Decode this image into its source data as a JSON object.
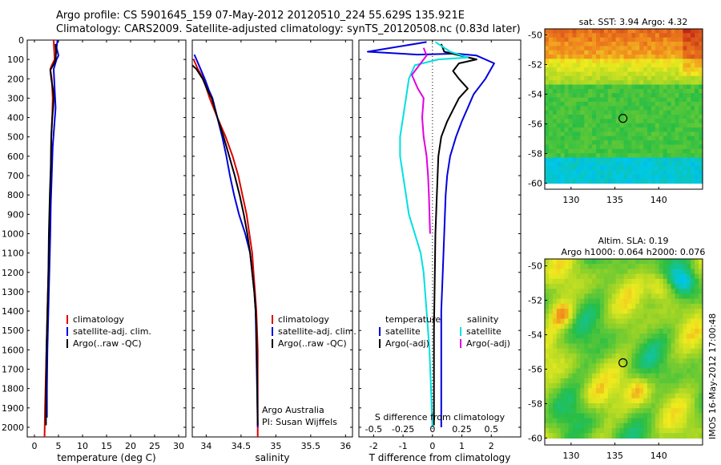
{
  "header": {
    "line1": "Argo profile: CS 5901645_159 07-May-2012 20120510_224 55.629S 135.921E",
    "line2": "Climatology: CARS2009. Satellite-adjusted climatology: synTS_20120508.nc (0.83d later)"
  },
  "side_stamp": "IMOS 16-May-2012 17:00:48",
  "colors": {
    "climatology": "#dd0000",
    "satellite": "#0000dd",
    "argo": "#000000",
    "satellite_salinity": "#00e0e0",
    "argo_salinity": "#e000e0"
  },
  "chart_data": [
    {
      "type": "line",
      "panel": "temperature",
      "xlabel": "temperature (deg C)",
      "ylabel": "",
      "xlim": [
        -1.5,
        31.5
      ],
      "ylim": [
        2050,
        0
      ],
      "y_inverted": true,
      "x_ticks": [
        0,
        5,
        10,
        15,
        20,
        25,
        30
      ],
      "y_ticks": [
        0,
        100,
        200,
        300,
        400,
        500,
        600,
        700,
        800,
        900,
        1000,
        1100,
        1200,
        1300,
        1400,
        1500,
        1600,
        1700,
        1800,
        1900,
        2000
      ],
      "legend": {
        "placement": "lower-middle",
        "entries": [
          "climatology",
          "satellite-adj. clim.",
          "Argo(..raw -QC)"
        ]
      },
      "series": [
        {
          "name": "climatology",
          "color": "#dd0000",
          "points": [
            [
              4.0,
              0
            ],
            [
              4.1,
              50
            ],
            [
              4.2,
              100
            ],
            [
              3.6,
              130
            ],
            [
              3.3,
              150
            ],
            [
              3.6,
              200
            ],
            [
              3.8,
              300
            ],
            [
              3.7,
              400
            ],
            [
              3.5,
              500
            ],
            [
              3.4,
              700
            ],
            [
              3.2,
              900
            ],
            [
              3.0,
              1100
            ],
            [
              2.8,
              1300
            ],
            [
              2.6,
              1500
            ],
            [
              2.4,
              1700
            ],
            [
              2.2,
              1900
            ],
            [
              2.1,
              2050
            ]
          ]
        },
        {
          "name": "satellite-adj. clim.",
          "color": "#0000dd",
          "points": [
            [
              4.8,
              0
            ],
            [
              4.6,
              40
            ],
            [
              5.0,
              80
            ],
            [
              4.6,
              100
            ],
            [
              4.0,
              150
            ],
            [
              4.2,
              250
            ],
            [
              4.4,
              350
            ],
            [
              4.1,
              450
            ],
            [
              3.8,
              550
            ],
            [
              3.6,
              700
            ],
            [
              3.4,
              850
            ],
            [
              3.3,
              1000
            ],
            [
              3.1,
              1200
            ],
            [
              2.9,
              1400
            ],
            [
              2.7,
              1600
            ],
            [
              2.6,
              1800
            ],
            [
              2.6,
              1950
            ]
          ]
        },
        {
          "name": "Argo(..raw -QC)",
          "color": "#000000",
          "points": [
            [
              4.4,
              20
            ],
            [
              4.5,
              60
            ],
            [
              4.4,
              100
            ],
            [
              4.1,
              120
            ],
            [
              3.3,
              155
            ],
            [
              3.5,
              200
            ],
            [
              3.9,
              260
            ],
            [
              4.0,
              300
            ],
            [
              3.9,
              350
            ],
            [
              3.7,
              400
            ],
            [
              3.5,
              500
            ],
            [
              3.4,
              650
            ],
            [
              3.2,
              800
            ],
            [
              3.0,
              1000
            ],
            [
              2.9,
              1200
            ],
            [
              2.7,
              1400
            ],
            [
              2.5,
              1600
            ],
            [
              2.4,
              1800
            ],
            [
              2.4,
              1990
            ]
          ]
        }
      ]
    },
    {
      "type": "line",
      "panel": "salinity",
      "xlabel": "salinity",
      "ylabel": "",
      "xlim": [
        33.8,
        36.1
      ],
      "ylim": [
        2050,
        0
      ],
      "y_inverted": true,
      "x_ticks": [
        34,
        34.5,
        35,
        35.5,
        36
      ],
      "x_tick_labels": [
        "34",
        "34.5",
        "35",
        "35.5",
        "36"
      ],
      "legend": {
        "placement": "lower-right",
        "entries": [
          "climatology",
          "satellite-adj. clim.",
          "Argo(..raw -QC)"
        ]
      },
      "annotation": [
        "Argo Australia",
        "PI: Susan Wijffels"
      ],
      "series": [
        {
          "name": "climatology",
          "color": "#dd0000",
          "points": [
            [
              33.82,
              100
            ],
            [
              33.88,
              150
            ],
            [
              33.96,
              200
            ],
            [
              34.05,
              300
            ],
            [
              34.16,
              400
            ],
            [
              34.28,
              500
            ],
            [
              34.38,
              600
            ],
            [
              34.46,
              700
            ],
            [
              34.52,
              800
            ],
            [
              34.58,
              900
            ],
            [
              34.62,
              1000
            ],
            [
              34.66,
              1100
            ],
            [
              34.68,
              1200
            ],
            [
              34.7,
              1300
            ],
            [
              34.72,
              1400
            ],
            [
              34.73,
              1500
            ],
            [
              34.74,
              1600
            ],
            [
              34.74,
              1800
            ],
            [
              34.74,
              2050
            ]
          ]
        },
        {
          "name": "satellite-adj. clim.",
          "color": "#0000dd",
          "points": [
            [
              33.83,
              75
            ],
            [
              33.86,
              100
            ],
            [
              33.92,
              150
            ],
            [
              33.99,
              210
            ],
            [
              34.04,
              260
            ],
            [
              34.09,
              300
            ],
            [
              34.16,
              400
            ],
            [
              34.23,
              500
            ],
            [
              34.29,
              600
            ],
            [
              34.34,
              700
            ],
            [
              34.4,
              800
            ],
            [
              34.47,
              900
            ],
            [
              34.56,
              1000
            ],
            [
              34.63,
              1100
            ],
            [
              34.66,
              1200
            ],
            [
              34.69,
              1300
            ],
            [
              34.71,
              1400
            ],
            [
              34.72,
              1600
            ],
            [
              34.73,
              1800
            ],
            [
              34.74,
              2000
            ]
          ]
        },
        {
          "name": "Argo(..raw -QC)",
          "color": "#000000",
          "points": [
            [
              33.8,
              130
            ],
            [
              33.86,
              150
            ],
            [
              33.95,
              200
            ],
            [
              34.02,
              260
            ],
            [
              34.08,
              300
            ],
            [
              34.16,
              400
            ],
            [
              34.25,
              500
            ],
            [
              34.33,
              600
            ],
            [
              34.41,
              700
            ],
            [
              34.48,
              800
            ],
            [
              34.54,
              900
            ],
            [
              34.59,
              1000
            ],
            [
              34.63,
              1100
            ],
            [
              34.66,
              1200
            ],
            [
              34.69,
              1300
            ],
            [
              34.71,
              1400
            ],
            [
              34.72,
              1500
            ],
            [
              34.73,
              1700
            ],
            [
              34.74,
              1990
            ]
          ]
        }
      ]
    },
    {
      "type": "line",
      "panel": "differences",
      "xlabel": "T difference from climatology",
      "x2label": "S difference from climatology",
      "xlim": [
        -2.5,
        3
      ],
      "ylim": [
        2050,
        0
      ],
      "y_inverted": true,
      "x_ticks": [
        -2,
        -1,
        0,
        1,
        2
      ],
      "x2_ticks": [
        -0.5,
        -0.25,
        0,
        0.25,
        0.5
      ],
      "x2_tick_labels": [
        "-0.5",
        "-0.25",
        "0",
        "0.25",
        "0.5"
      ],
      "zero_line": "dotted",
      "legend": {
        "placement": "lower-middle",
        "temperature_title": "temperature",
        "salinity_title": "salinity",
        "temperature_entries": [
          "satellite",
          "Argo(-adj)"
        ],
        "salinity_entries": [
          "satellite",
          "Argo(-adj)"
        ]
      },
      "series": [
        {
          "name": "satellite",
          "group": "temperature",
          "color": "#0000dd",
          "points": [
            [
              -0.2,
              10
            ],
            [
              -2.2,
              60
            ],
            [
              -0.5,
              75
            ],
            [
              0.8,
              70
            ],
            [
              1.5,
              80
            ],
            [
              2.1,
              120
            ],
            [
              1.8,
              200
            ],
            [
              1.4,
              280
            ],
            [
              1.2,
              350
            ],
            [
              1.0,
              420
            ],
            [
              0.8,
              500
            ],
            [
              0.6,
              600
            ],
            [
              0.5,
              700
            ],
            [
              0.45,
              800
            ],
            [
              0.4,
              1000
            ],
            [
              0.35,
              1200
            ],
            [
              0.3,
              1400
            ],
            [
              0.3,
              1600
            ],
            [
              0.3,
              1800
            ],
            [
              0.3,
              2000
            ]
          ]
        },
        {
          "name": "Argo(-adj)",
          "group": "temperature",
          "color": "#000000",
          "points": [
            [
              0.3,
              20
            ],
            [
              0.4,
              60
            ],
            [
              1.5,
              100
            ],
            [
              0.9,
              120
            ],
            [
              0.7,
              160
            ],
            [
              0.9,
              200
            ],
            [
              1.2,
              250
            ],
            [
              0.9,
              300
            ],
            [
              0.7,
              360
            ],
            [
              0.5,
              420
            ],
            [
              0.3,
              500
            ],
            [
              0.2,
              600
            ],
            [
              0.15,
              800
            ],
            [
              0.1,
              1000
            ],
            [
              0.08,
              1200
            ],
            [
              0.05,
              1500
            ],
            [
              0.05,
              1800
            ],
            [
              0.05,
              1990
            ]
          ]
        },
        {
          "name": "satellite",
          "group": "salinity",
          "color": "#00e0e0",
          "points": [
            [
              0.1,
              10
            ],
            [
              0.6,
              60
            ],
            [
              1.2,
              90
            ],
            [
              0.2,
              100
            ],
            [
              -0.6,
              130
            ],
            [
              -0.8,
              200
            ],
            [
              -0.9,
              300
            ],
            [
              -1.0,
              400
            ],
            [
              -1.1,
              500
            ],
            [
              -1.1,
              600
            ],
            [
              -1.0,
              700
            ],
            [
              -0.9,
              800
            ],
            [
              -0.8,
              900
            ],
            [
              -0.6,
              1000
            ],
            [
              -0.4,
              1100
            ],
            [
              -0.3,
              1200
            ],
            [
              -0.2,
              1400
            ],
            [
              -0.1,
              1600
            ],
            [
              -0.05,
              1800
            ],
            [
              0.0,
              2000
            ]
          ]
        },
        {
          "name": "Argo(-adj)",
          "group": "salinity",
          "color": "#e000e0",
          "points": [
            [
              -0.3,
              40
            ],
            [
              -0.2,
              80
            ],
            [
              -0.4,
              120
            ],
            [
              -0.7,
              180
            ],
            [
              -0.5,
              250
            ],
            [
              -0.3,
              300
            ],
            [
              -0.35,
              400
            ],
            [
              -0.3,
              500
            ],
            [
              -0.2,
              600
            ],
            [
              -0.15,
              700
            ],
            [
              -0.12,
              800
            ],
            [
              -0.1,
              900
            ],
            [
              -0.08,
              1000
            ]
          ]
        }
      ]
    },
    {
      "type": "heatmap",
      "panel": "sst_map",
      "title": "sat. SST: 3.94  Argo: 4.32",
      "xlim": [
        127,
        145
      ],
      "ylim": [
        -60.4,
        -49.6
      ],
      "x_ticks": [
        130,
        135,
        140
      ],
      "y_ticks": [
        -50,
        -52,
        -54,
        -56,
        -58,
        -60
      ],
      "y_tick_labels": [
        "-50",
        "-52",
        "-54",
        "-56",
        "-58",
        "-60"
      ],
      "marker": {
        "lon": 135.921,
        "lat": -55.629
      }
    },
    {
      "type": "heatmap",
      "panel": "sla_map",
      "title_lines": [
        "Altim. SLA: 0.19",
        "Argo h1000: 0.064 h2000: 0.076"
      ],
      "xlim": [
        127,
        145
      ],
      "ylim": [
        -60.4,
        -49.6
      ],
      "x_ticks": [
        130,
        135,
        140
      ],
      "y_ticks": [
        -50,
        -52,
        -54,
        -56,
        -58,
        -60
      ],
      "y_tick_labels": [
        "-50",
        "-52",
        "-54",
        "-56",
        "-58",
        "-60"
      ],
      "marker": {
        "lon": 135.921,
        "lat": -55.629
      }
    }
  ]
}
